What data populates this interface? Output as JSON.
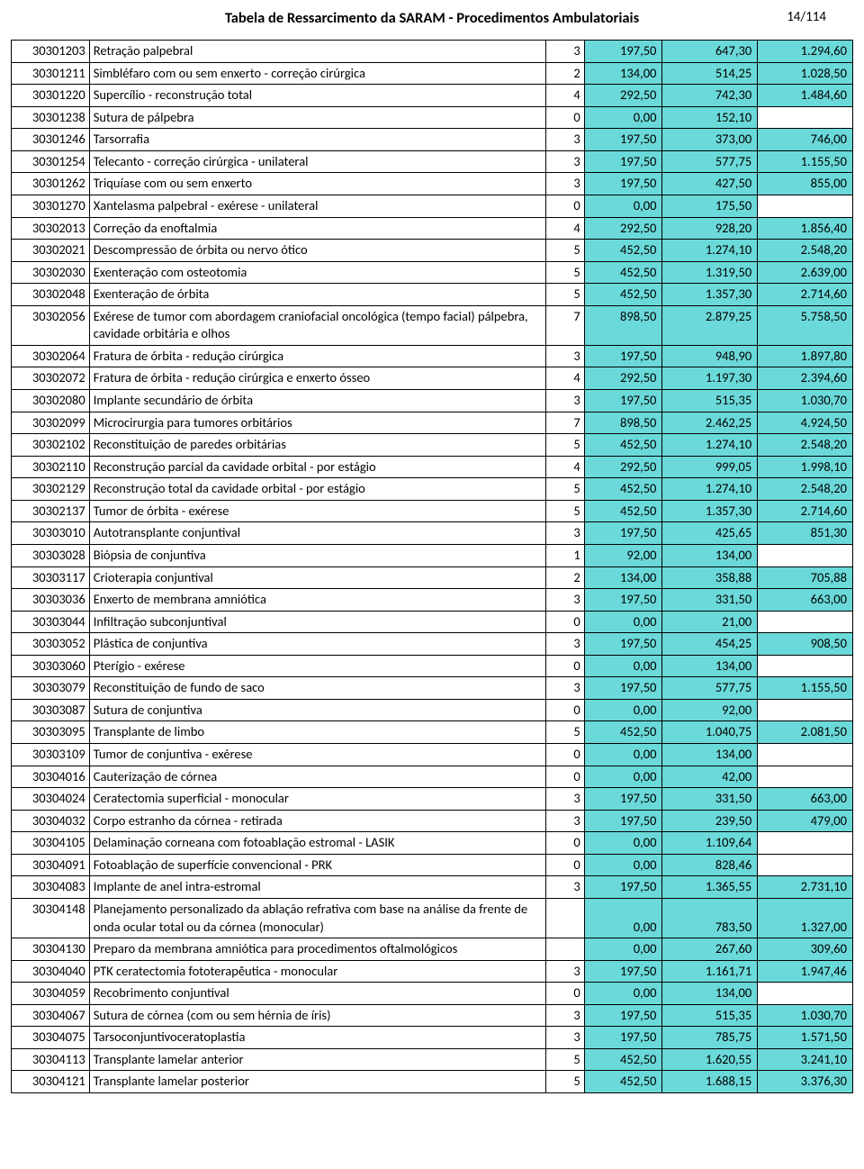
{
  "title": "Tabela de Ressarcimento da SARAM - Procedimentos Ambulatoriais",
  "page": "14/114",
  "highlight_color": "#6bd9d9",
  "rows": [
    {
      "code": "30301203",
      "desc": "Retração palpebral",
      "n": "3",
      "v1": "197,50",
      "v2": "647,30",
      "v3": "1.294,60"
    },
    {
      "code": "30301211",
      "desc": "Simbléfaro com ou sem enxerto - correção cirúrgica",
      "n": "2",
      "v1": "134,00",
      "v2": "514,25",
      "v3": "1.028,50"
    },
    {
      "code": "30301220",
      "desc": "Supercílio - reconstrução total",
      "n": "4",
      "v1": "292,50",
      "v2": "742,30",
      "v3": "1.484,60"
    },
    {
      "code": "30301238",
      "desc": "Sutura de pálpebra",
      "n": "0",
      "v1": "0,00",
      "v2": "152,10",
      "v3": ""
    },
    {
      "code": "30301246",
      "desc": "Tarsorrafia",
      "n": "3",
      "v1": "197,50",
      "v2": "373,00",
      "v3": "746,00"
    },
    {
      "code": "30301254",
      "desc": "Telecanto - correção cirúrgica - unilateral",
      "n": "3",
      "v1": "197,50",
      "v2": "577,75",
      "v3": "1.155,50"
    },
    {
      "code": "30301262",
      "desc": "Triquíase com ou sem enxerto",
      "n": "3",
      "v1": "197,50",
      "v2": "427,50",
      "v3": "855,00"
    },
    {
      "code": "30301270",
      "desc": "Xantelasma palpebral - exérese - unilateral",
      "n": "0",
      "v1": "0,00",
      "v2": "175,50",
      "v3": ""
    },
    {
      "code": "30302013",
      "desc": "Correção da enoftalmia",
      "n": "4",
      "v1": "292,50",
      "v2": "928,20",
      "v3": "1.856,40"
    },
    {
      "code": "30302021",
      "desc": "Descompressão de órbita ou nervo ótico",
      "n": "5",
      "v1": "452,50",
      "v2": "1.274,10",
      "v3": "2.548,20"
    },
    {
      "code": "30302030",
      "desc": "Exenteração com osteotomia",
      "n": "5",
      "v1": "452,50",
      "v2": "1.319,50",
      "v3": "2.639,00"
    },
    {
      "code": "30302048",
      "desc": "Exenteração de órbita",
      "n": "5",
      "v1": "452,50",
      "v2": "1.357,30",
      "v3": "2.714,60"
    },
    {
      "code": "30302056",
      "desc": "Exérese de tumor com abordagem craniofacial oncológica (tempo facial) pálpebra, cavidade orbitária e olhos",
      "n": "7",
      "v1": "898,50",
      "v2": "2.879,25",
      "v3": "5.758,50"
    },
    {
      "code": "30302064",
      "desc": "Fratura de órbita - redução cirúrgica",
      "n": "3",
      "v1": "197,50",
      "v2": "948,90",
      "v3": "1.897,80"
    },
    {
      "code": "30302072",
      "desc": "Fratura de órbita - redução cirúrgica e enxerto ósseo",
      "n": "4",
      "v1": "292,50",
      "v2": "1.197,30",
      "v3": "2.394,60"
    },
    {
      "code": "30302080",
      "desc": "Implante secundário de órbita",
      "n": "3",
      "v1": "197,50",
      "v2": "515,35",
      "v3": "1.030,70"
    },
    {
      "code": "30302099",
      "desc": "Microcirurgia para tumores orbitários",
      "n": "7",
      "v1": "898,50",
      "v2": "2.462,25",
      "v3": "4.924,50"
    },
    {
      "code": "30302102",
      "desc": "Reconstituição de paredes orbitárias",
      "n": "5",
      "v1": "452,50",
      "v2": "1.274,10",
      "v3": "2.548,20"
    },
    {
      "code": "30302110",
      "desc": "Reconstrução parcial da cavidade orbital - por estágio",
      "n": "4",
      "v1": "292,50",
      "v2": "999,05",
      "v3": "1.998,10"
    },
    {
      "code": "30302129",
      "desc": "Reconstrução total da cavidade orbital - por estágio",
      "n": "5",
      "v1": "452,50",
      "v2": "1.274,10",
      "v3": "2.548,20"
    },
    {
      "code": "30302137",
      "desc": "Tumor de órbita - exérese",
      "n": "5",
      "v1": "452,50",
      "v2": "1.357,30",
      "v3": "2.714,60"
    },
    {
      "code": "30303010",
      "desc": "Autotransplante conjuntival",
      "n": "3",
      "v1": "197,50",
      "v2": "425,65",
      "v3": "851,30"
    },
    {
      "code": "30303028",
      "desc": "Biópsia de conjuntiva",
      "n": "1",
      "v1": "92,00",
      "v2": "134,00",
      "v3": ""
    },
    {
      "code": "30303117",
      "desc": "Crioterapia conjuntival",
      "n": "2",
      "v1": "134,00",
      "v2": "358,88",
      "v3": "705,88"
    },
    {
      "code": "30303036",
      "desc": "Enxerto de membrana amniótica",
      "n": "3",
      "v1": "197,50",
      "v2": "331,50",
      "v3": "663,00"
    },
    {
      "code": "30303044",
      "desc": "Infiltração subconjuntival",
      "n": "0",
      "v1": "0,00",
      "v2": "21,00",
      "v3": ""
    },
    {
      "code": "30303052",
      "desc": "Plástica de conjuntiva",
      "n": "3",
      "v1": "197,50",
      "v2": "454,25",
      "v3": "908,50"
    },
    {
      "code": "30303060",
      "desc": "Pterígio - exérese",
      "n": "0",
      "v1": "0,00",
      "v2": "134,00",
      "v3": ""
    },
    {
      "code": "30303079",
      "desc": "Reconstituição de fundo de saco",
      "n": "3",
      "v1": "197,50",
      "v2": "577,75",
      "v3": "1.155,50"
    },
    {
      "code": "30303087",
      "desc": "Sutura de conjuntiva",
      "n": "0",
      "v1": "0,00",
      "v2": "92,00",
      "v3": ""
    },
    {
      "code": "30303095",
      "desc": "Transplante de limbo",
      "n": "5",
      "v1": "452,50",
      "v2": "1.040,75",
      "v3": "2.081,50"
    },
    {
      "code": "30303109",
      "desc": "Tumor de conjuntiva - exérese",
      "n": "0",
      "v1": "0,00",
      "v2": "134,00",
      "v3": ""
    },
    {
      "code": "30304016",
      "desc": "Cauterização de córnea",
      "n": "0",
      "v1": "0,00",
      "v2": "42,00",
      "v3": ""
    },
    {
      "code": "30304024",
      "desc": "Ceratectomia superficial - monocular",
      "n": "3",
      "v1": "197,50",
      "v2": "331,50",
      "v3": "663,00"
    },
    {
      "code": "30304032",
      "desc": "Corpo estranho da córnea - retirada",
      "n": "3",
      "v1": "197,50",
      "v2": "239,50",
      "v3": "479,00"
    },
    {
      "code": "30304105",
      "desc": "Delaminação corneana com fotoablação estromal - LASIK",
      "n": "0",
      "v1": "0,00",
      "v2": "1.109,64",
      "v3": ""
    },
    {
      "code": "30304091",
      "desc": "Fotoablação de superfície convencional - PRK",
      "n": "0",
      "v1": "0,00",
      "v2": "828,46",
      "v3": ""
    },
    {
      "code": "30304083",
      "desc": "Implante de anel intra-estromal",
      "n": "3",
      "v1": "197,50",
      "v2": "1.365,55",
      "v3": "2.731,10"
    },
    {
      "code": "30304148",
      "desc": "Planejamento personalizado da ablação refrativa com base na análise da frente de onda ocular total ou da córnea (monocular)",
      "n": "",
      "v1": "0,00",
      "v2": "783,50",
      "v3": "1.327,00",
      "tall": true
    },
    {
      "code": "30304130",
      "desc": "Preparo da membrana amniótica para procedimentos oftalmológicos",
      "n": "",
      "v1": "0,00",
      "v2": "267,60",
      "v3": "309,60",
      "tall": true
    },
    {
      "code": "30304040",
      "desc": "PTK ceratectomia fototerapêutica - monocular",
      "n": "3",
      "v1": "197,50",
      "v2": "1.161,71",
      "v3": "1.947,46"
    },
    {
      "code": "30304059",
      "desc": "Recobrimento conjuntival",
      "n": "0",
      "v1": "0,00",
      "v2": "134,00",
      "v3": ""
    },
    {
      "code": "30304067",
      "desc": "Sutura de córnea (com ou sem hérnia de íris)",
      "n": "3",
      "v1": "197,50",
      "v2": "515,35",
      "v3": "1.030,70"
    },
    {
      "code": "30304075",
      "desc": "Tarsoconjuntivoceratoplastia",
      "n": "3",
      "v1": "197,50",
      "v2": "785,75",
      "v3": "1.571,50"
    },
    {
      "code": "30304113",
      "desc": "Transplante lamelar anterior",
      "n": "5",
      "v1": "452,50",
      "v2": "1.620,55",
      "v3": "3.241,10"
    },
    {
      "code": "30304121",
      "desc": "Transplante lamelar posterior",
      "n": "5",
      "v1": "452,50",
      "v2": "1.688,15",
      "v3": "3.376,30"
    }
  ]
}
